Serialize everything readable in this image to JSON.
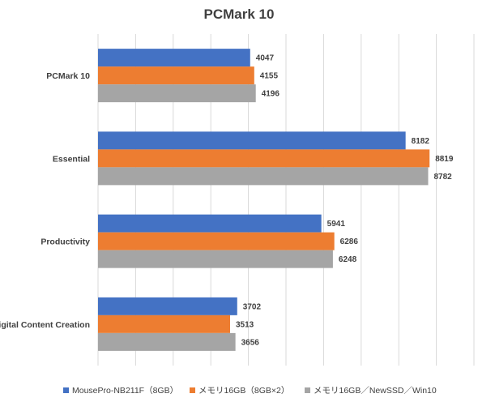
{
  "chart_data": {
    "type": "bar",
    "orientation": "horizontal",
    "title": "PCMark 10",
    "categories": [
      "PCMark 10",
      "Essential",
      "Productivity",
      "Digital Content Creation"
    ],
    "series": [
      {
        "name": "MousePro-NB211F（8GB）",
        "color": "#4472c4",
        "values": [
          4047,
          8182,
          5941,
          3702
        ]
      },
      {
        "name": "メモリ16GB（8GB×2）",
        "color": "#ed7d31",
        "values": [
          4155,
          8819,
          6286,
          3513
        ]
      },
      {
        "name": "メモリ16GB／NewSSD／Win10",
        "color": "#a5a5a5",
        "values": [
          4196,
          8782,
          6248,
          3656
        ]
      }
    ],
    "xlim": [
      0,
      10000
    ],
    "x_gridlines": true,
    "x_tick_labels_visible": false,
    "data_labels": true,
    "legend_position": "bottom"
  }
}
